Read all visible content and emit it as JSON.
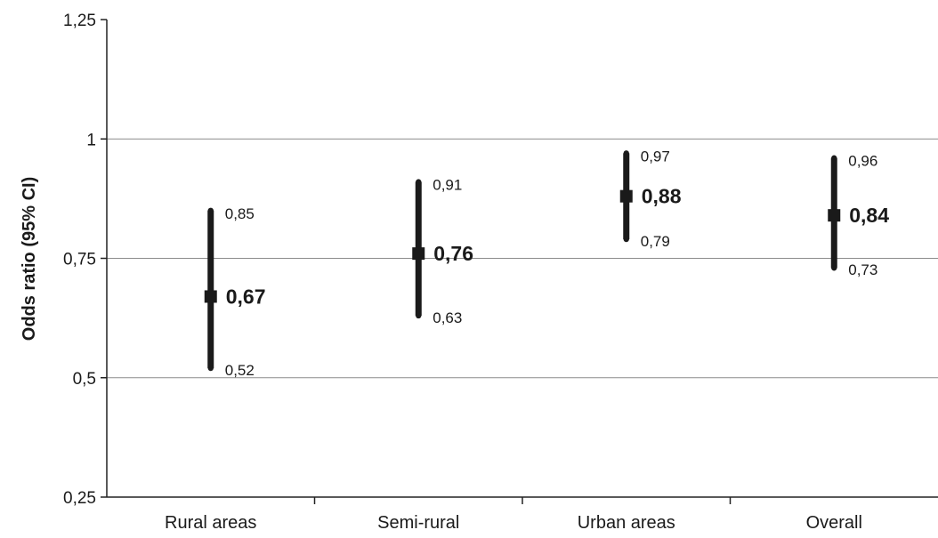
{
  "chart_data": {
    "type": "scatter",
    "ylabel": "Odds ratio (95% CI)",
    "ylim": [
      0.25,
      1.25
    ],
    "yticks": [
      {
        "value": 0.25,
        "label": "0,25"
      },
      {
        "value": 0.5,
        "label": "0,5"
      },
      {
        "value": 0.75,
        "label": "0,75"
      },
      {
        "value": 1,
        "label": "1"
      },
      {
        "value": 1.25,
        "label": "1,25"
      }
    ],
    "grid": true,
    "categories": [
      "Rural areas",
      "Semi-rural",
      "Urban areas",
      "Overall"
    ],
    "points": [
      {
        "category": "Rural areas",
        "estimate": 0.67,
        "lower": 0.52,
        "upper": 0.85,
        "estimate_label": "0,67",
        "lower_label": "0,52",
        "upper_label": "0,85"
      },
      {
        "category": "Semi-rural",
        "estimate": 0.76,
        "lower": 0.63,
        "upper": 0.91,
        "estimate_label": "0,76",
        "lower_label": "0,63",
        "upper_label": "0,91"
      },
      {
        "category": "Urban areas",
        "estimate": 0.88,
        "lower": 0.79,
        "upper": 0.97,
        "estimate_label": "0,88",
        "lower_label": "0,79",
        "upper_label": "0,97"
      },
      {
        "category": "Overall",
        "estimate": 0.84,
        "lower": 0.73,
        "upper": 0.96,
        "estimate_label": "0,84",
        "lower_label": "0,73",
        "upper_label": "0,96"
      }
    ],
    "colors": {
      "marks": "#1a1a1a",
      "grid": "#8c8c8c"
    }
  }
}
